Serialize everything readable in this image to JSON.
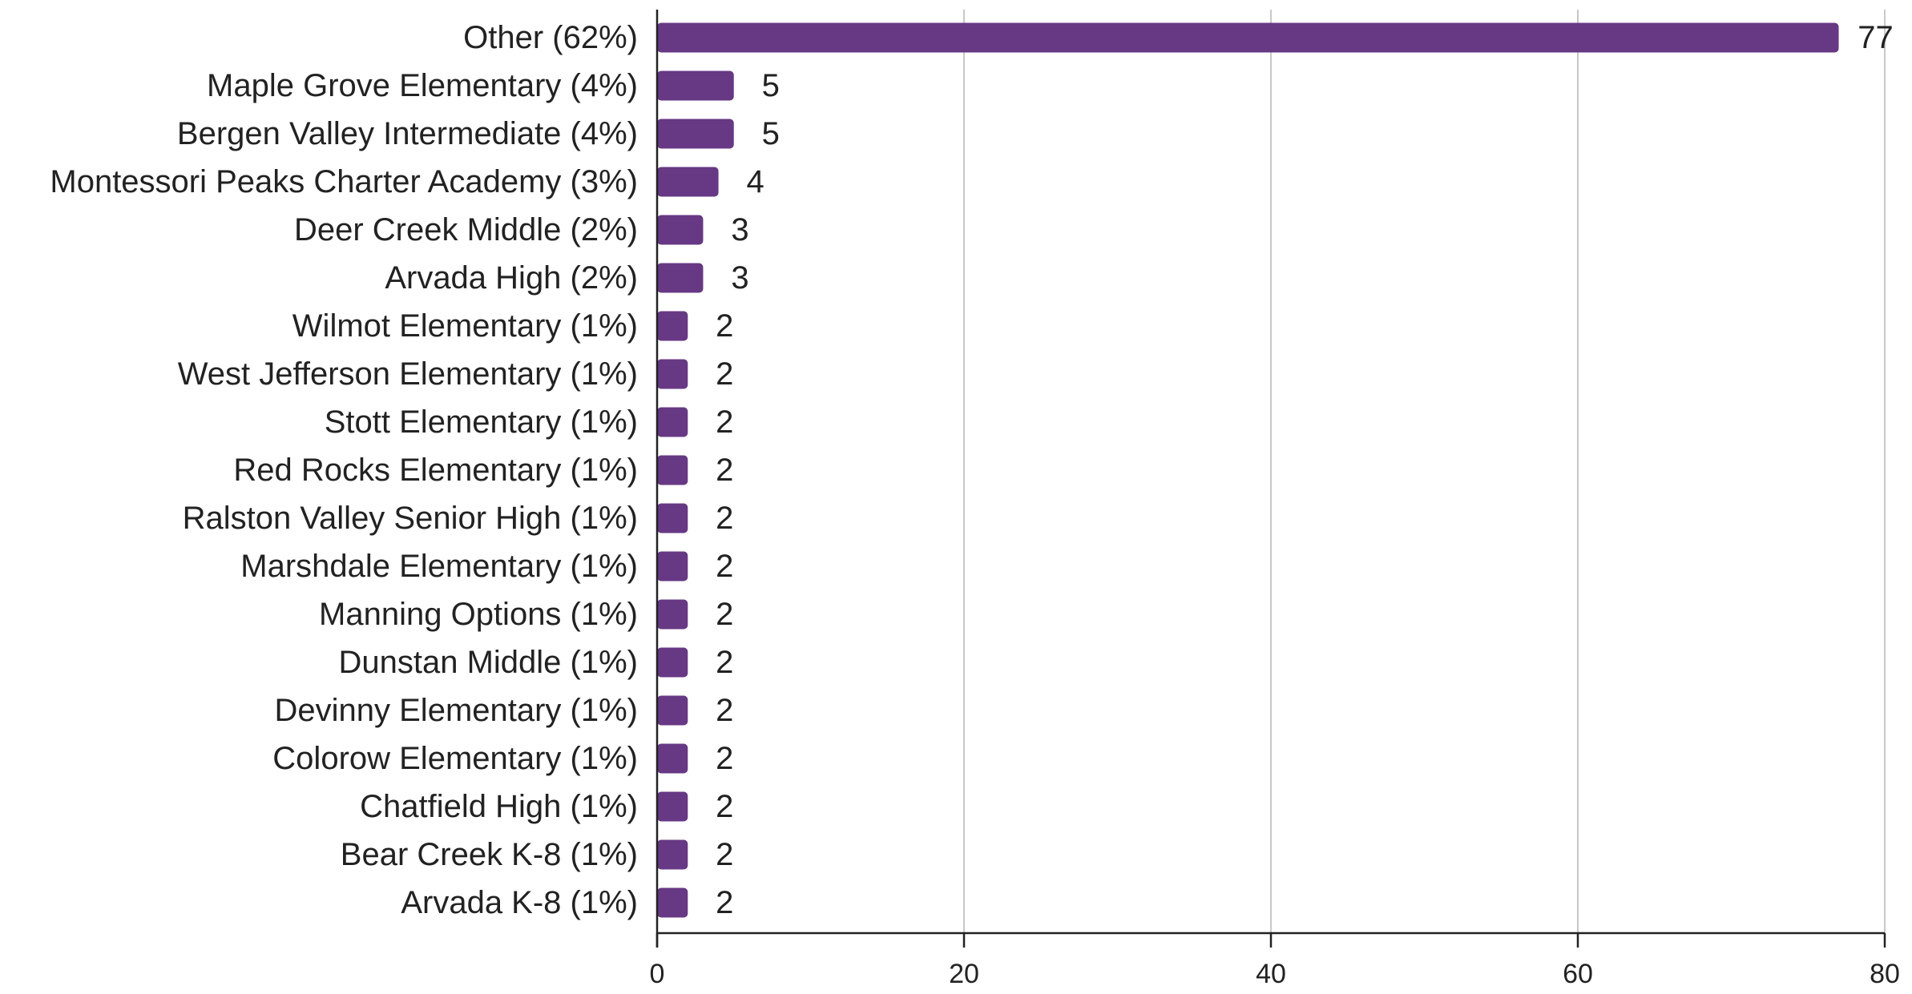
{
  "chart_data": {
    "type": "bar",
    "orientation": "horizontal",
    "categories": [
      "Other (62%)",
      "Maple Grove Elementary (4%)",
      "Bergen Valley Intermediate (4%)",
      "Montessori Peaks Charter Academy (3%)",
      "Deer Creek Middle (2%)",
      "Arvada High (2%)",
      "Wilmot Elementary (1%)",
      "West Jefferson Elementary (1%)",
      "Stott Elementary (1%)",
      "Red Rocks Elementary (1%)",
      "Ralston Valley Senior High (1%)",
      "Marshdale Elementary (1%)",
      "Manning Options (1%)",
      "Dunstan Middle (1%)",
      "Devinny Elementary (1%)",
      "Colorow Elementary (1%)",
      "Chatfield High (1%)",
      "Bear Creek K-8 (1%)",
      "Arvada K-8 (1%)"
    ],
    "values": [
      77,
      5,
      5,
      4,
      3,
      3,
      2,
      2,
      2,
      2,
      2,
      2,
      2,
      2,
      2,
      2,
      2,
      2,
      2
    ],
    "xlim": [
      0,
      80
    ],
    "xticks": [
      0,
      20,
      40,
      60,
      80
    ],
    "grid": "vertical",
    "bar_color": "#673884",
    "data_labels": true
  }
}
